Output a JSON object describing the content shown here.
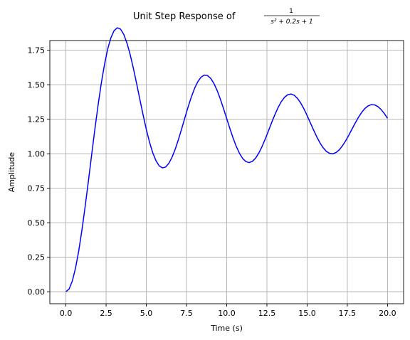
{
  "chart_data": {
    "type": "line",
    "title": {
      "prefix": "Unit Step Response of",
      "numerator": "1",
      "denominator": "s² + 0.2s + 1"
    },
    "xlabel": "Time (s)",
    "ylabel": "Amplitude",
    "xlim": [
      -1.0,
      21.0
    ],
    "ylim": [
      -0.087,
      1.82
    ],
    "xticks": [
      0.0,
      2.5,
      5.0,
      7.5,
      10.0,
      12.5,
      15.0,
      17.5,
      20.0
    ],
    "xtick_labels": [
      "0.0",
      "2.5",
      "5.0",
      "7.5",
      "10.0",
      "12.5",
      "15.0",
      "17.5",
      "20.0"
    ],
    "yticks": [
      0.0,
      0.25,
      0.5,
      0.75,
      1.0,
      1.25,
      1.5,
      1.75
    ],
    "ytick_labels": [
      "0.00",
      "0.25",
      "0.50",
      "0.75",
      "1.00",
      "1.25",
      "1.50",
      "1.75"
    ],
    "grid": true,
    "series": [
      {
        "color": "#0000ff",
        "x": [
          0.0,
          0.2,
          0.4,
          0.6,
          0.8,
          1.0,
          1.2,
          1.4,
          1.6,
          1.8,
          2.0,
          2.2,
          2.4,
          2.6,
          2.8,
          3.0,
          3.2,
          3.4,
          3.6,
          3.8,
          4.0,
          4.2,
          4.4,
          4.6,
          4.8,
          5.0,
          5.2,
          5.4,
          5.6,
          5.8,
          6.0,
          6.2,
          6.4,
          6.6,
          6.8,
          7.0,
          7.2,
          7.4,
          7.6,
          7.8,
          8.0,
          8.2,
          8.4,
          8.6,
          8.8,
          9.0,
          9.2,
          9.4,
          9.6,
          9.8,
          10.0,
          10.2,
          10.4,
          10.6,
          10.8,
          11.0,
          11.2,
          11.4,
          11.6,
          11.8,
          12.0,
          12.2,
          12.4,
          12.6,
          12.8,
          13.0,
          13.2,
          13.4,
          13.6,
          13.8,
          14.0,
          14.2,
          14.4,
          14.6,
          14.8,
          15.0,
          15.2,
          15.4,
          15.6,
          15.8,
          16.0,
          16.2,
          16.4,
          16.6,
          16.8,
          17.0,
          17.2,
          17.4,
          17.6,
          17.8,
          18.0,
          18.2,
          18.4,
          18.6,
          18.8,
          19.0,
          19.2,
          19.4,
          19.6,
          19.8,
          20.0
        ],
        "values": [
          0.0,
          0.0198,
          0.0781,
          0.1722,
          0.2977,
          0.4492,
          0.6202,
          0.8033,
          0.991,
          1.176,
          1.3512,
          1.5102,
          1.6475,
          1.7589,
          1.8411,
          1.8925,
          1.9126,
          1.9024,
          1.864,
          1.8006,
          1.7164,
          1.6166,
          1.5068,
          1.393,
          1.2811,
          1.1764,
          1.0837,
          1.0069,
          0.9492,
          0.9124,
          0.8972,
          0.9035,
          0.93,
          0.9743,
          1.0334,
          1.1037,
          1.181,
          1.261,
          1.3391,
          1.411,
          1.4729,
          1.5215,
          1.5543,
          1.5696,
          1.5669,
          1.5466,
          1.5099,
          1.4592,
          1.3973,
          1.3278,
          1.2545,
          1.1815,
          1.1127,
          1.0516,
          1.0013,
          0.9643,
          0.9422,
          0.9358,
          0.9449,
          0.9687,
          1.0054,
          1.0527,
          1.1076,
          1.1668,
          1.227,
          1.2844,
          1.3358,
          1.3783,
          1.4095,
          1.4278,
          1.4324,
          1.4232,
          1.4011,
          1.3678,
          1.3254,
          1.2767,
          1.2245,
          1.172,
          1.1224,
          1.0785,
          1.0427,
          1.0169,
          1.0024,
          0.9996,
          1.0085,
          1.0282,
          1.0574,
          1.0941,
          1.1359,
          1.1802,
          1.2242,
          1.2651,
          1.3005,
          1.3284,
          1.347,
          1.3556,
          1.3538,
          1.3418,
          1.3205,
          1.2914,
          1.2564
        ]
      }
    ]
  }
}
